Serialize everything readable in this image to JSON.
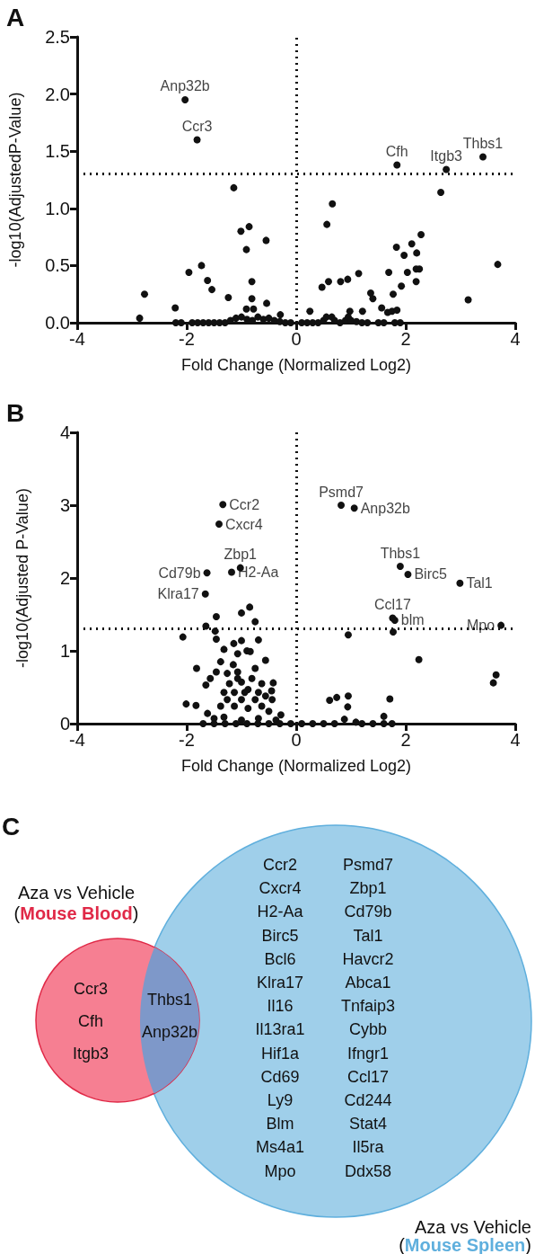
{
  "chart_data": [
    {
      "type": "scatter",
      "title": "A",
      "xlabel": "Fold Change (Normalized Log2)",
      "ylabel": "-log10(AdjustedP-Value)",
      "marker": "circle",
      "xlim": [
        -4,
        4
      ],
      "xticks": [
        -4,
        -2,
        0,
        2,
        4
      ],
      "ylim": [
        0,
        2.5
      ],
      "yticks": [
        {
          "value": 0,
          "label": "0.0"
        },
        0.5,
        {
          "value": 1,
          "label": "1.0"
        },
        1.5,
        {
          "value": 2,
          "label": "2.0"
        },
        2.5
      ],
      "ref_lines": [
        {
          "axis": "x",
          "value": 0,
          "line_style": "dotted",
          "color": "#111111"
        },
        {
          "axis": "y",
          "value": 1.3,
          "line_style": "dotted",
          "color": "#111111"
        }
      ],
      "annotations": [
        {
          "text": "Anp32b",
          "x": -2.03,
          "y": 1.95
        },
        {
          "text": "Ccr3",
          "x": -1.81,
          "y": 1.6
        },
        {
          "text": "Cfh",
          "x": 1.84,
          "y": 1.38
        },
        {
          "text": "Itgb3",
          "x": 2.74,
          "y": 1.34
        },
        {
          "text": "Thbs1",
          "x": 3.41,
          "y": 1.45
        }
      ],
      "series": [
        {
          "color": "#111111",
          "x": [
            -2.03,
            -1.81,
            1.84,
            2.74,
            3.41,
            -1.14,
            0.66,
            0.56,
            -1.01,
            -0.86,
            -0.91,
            -0.55,
            2.64,
            3.68,
            3.14,
            -1.73,
            -1.96,
            -1.62,
            -1.54,
            -2.77,
            -2.86,
            -2.21,
            -1.24,
            -0.81,
            -0.81,
            -0.54,
            -0.91,
            -0.78,
            -0.29,
            2.28,
            1.83,
            2.11,
            1.97,
            2.2,
            2.19,
            2.25,
            2.03,
            2.19,
            1.92,
            1.69,
            1.77,
            1.36,
            1.4,
            1.14,
            0.94,
            0.81,
            0.59,
            0.47,
            1.56,
            1.67,
            1.75,
            1.84,
            1.21,
            0.98,
            0.25,
            1.9,
            -2.2,
            -2.1,
            -1.9,
            -1.8,
            -1.7,
            -1.6,
            -1.5,
            -1.4,
            -1.3,
            -1.2,
            -1.1,
            -1.0,
            -0.9,
            -0.8,
            -0.7,
            -0.6,
            -0.5,
            -0.4,
            -0.3,
            -0.2,
            -0.1,
            0.1,
            0.2,
            0.3,
            0.4,
            0.5,
            0.55,
            0.65,
            0.7,
            0.8,
            0.9,
            0.95,
            1.0,
            1.1,
            1.2,
            1.3,
            1.5,
            1.6,
            1.8
          ],
          "values": [
            1.95,
            1.6,
            1.38,
            1.34,
            1.45,
            1.18,
            1.04,
            0.86,
            0.8,
            0.84,
            0.64,
            0.72,
            1.14,
            0.51,
            0.2,
            0.5,
            0.44,
            0.37,
            0.29,
            0.25,
            0.04,
            0.13,
            0.22,
            0.36,
            0.21,
            0.17,
            0.12,
            0.12,
            0.07,
            0.77,
            0.66,
            0.69,
            0.59,
            0.61,
            0.47,
            0.47,
            0.44,
            0.36,
            0.32,
            0.44,
            0.25,
            0.26,
            0.21,
            0.43,
            0.38,
            0.36,
            0.36,
            0.31,
            0.13,
            0.09,
            0.1,
            0.11,
            0.1,
            0.1,
            0.1,
            0,
            0,
            0,
            0,
            0,
            0,
            0,
            0,
            0,
            0,
            0.02,
            0.04,
            0.05,
            0.03,
            0.02,
            0.05,
            0.03,
            0.04,
            0.02,
            0.01,
            0,
            0,
            0,
            0,
            0,
            0,
            0.02,
            0.05,
            0.05,
            0.02,
            0,
            0.02,
            0.05,
            0.02,
            0.01,
            0,
            0,
            0,
            0,
            0
          ]
        }
      ]
    },
    {
      "type": "scatter",
      "title": "B",
      "xlabel": "Fold Change (Normalized Log2)",
      "ylabel": "-log10(Adjusted P-Value)",
      "marker": "circle",
      "xlim": [
        -4,
        4
      ],
      "xticks": [
        -4,
        -2,
        0,
        2,
        4
      ],
      "ylim": [
        0,
        4
      ],
      "yticks": [
        0,
        1,
        2,
        3,
        4
      ],
      "ref_lines": [
        {
          "axis": "x",
          "value": 0,
          "line_style": "dotted",
          "color": "#111111"
        },
        {
          "axis": "y",
          "value": 1.3,
          "line_style": "dotted",
          "color": "#111111"
        }
      ],
      "annotations": [
        {
          "text": "Ccr2",
          "x": -1.34,
          "y": 3.01
        },
        {
          "text": "Cxcr4",
          "x": -1.41,
          "y": 2.74
        },
        {
          "text": "Psmd7",
          "x": 0.82,
          "y": 3.0
        },
        {
          "text": "Anp32b",
          "x": 1.06,
          "y": 2.96
        },
        {
          "text": "Cd79b",
          "x": -1.63,
          "y": 2.07
        },
        {
          "text": "Zbp1",
          "x": -1.02,
          "y": 2.14
        },
        {
          "text": "H2-Aa",
          "x": -1.18,
          "y": 2.08
        },
        {
          "text": "Klra17",
          "x": -1.66,
          "y": 1.78
        },
        {
          "text": "Thbs1",
          "x": 1.9,
          "y": 2.16
        },
        {
          "text": "Birc5",
          "x": 2.04,
          "y": 2.05
        },
        {
          "text": "Tal1",
          "x": 2.99,
          "y": 1.93
        },
        {
          "text": "Ccl17",
          "x": 1.76,
          "y": 1.45
        },
        {
          "text": "blm",
          "x": 1.8,
          "y": 1.42
        },
        {
          "text": "Mpo",
          "x": 3.74,
          "y": 1.35
        }
      ],
      "series": [
        {
          "color": "#111111",
          "x": [
            -1.34,
            -1.41,
            0.82,
            1.06,
            -1.63,
            -1.02,
            -1.18,
            -1.66,
            1.9,
            2.04,
            2.99,
            1.76,
            1.8,
            3.74,
            0.95,
            1.77,
            2.24,
            3.65,
            3.6,
            0.61,
            0.74,
            0.95,
            0.94,
            1.71,
            1.6,
            0.88,
            1.09,
            0.1,
            0.3,
            0.5,
            0.7,
            1.2,
            1.4,
            1.6,
            1.75,
            -2.07,
            -1.65,
            -1.46,
            -1.48,
            -1.46,
            -1.32,
            -1.14,
            -1.07,
            -1.0,
            -0.9,
            -0.84,
            -0.69,
            -0.56,
            -1.0,
            -0.85,
            -0.75,
            -1.82,
            -2.01,
            -1.83,
            -1.65,
            -1.57,
            -1.46,
            -1.38,
            -1.26,
            -1.15,
            -1.07,
            -1.0,
            -0.88,
            -0.81,
            -0.75,
            -0.63,
            -0.45,
            -0.42,
            -0.28,
            -1.38,
            -1.26,
            -1.13,
            -1.0,
            -0.88,
            -0.75,
            -0.63,
            -0.5,
            -1.62,
            -1.5,
            -1.32,
            -1.0,
            -0.69,
            -0.37,
            -1.32,
            -1.13,
            -0.94,
            -0.69,
            -1.22,
            -1.07,
            -0.56,
            -0.44,
            -1.7,
            -1.5,
            -1.3,
            -1.1,
            -0.9,
            -0.7,
            -0.5,
            -0.3,
            -0.1
          ],
          "values": [
            3.01,
            2.74,
            3.0,
            2.96,
            2.07,
            2.14,
            2.08,
            1.78,
            2.16,
            2.05,
            1.93,
            1.45,
            1.42,
            1.35,
            1.22,
            1.26,
            0.88,
            0.67,
            0.56,
            0.32,
            0.36,
            0.38,
            0.23,
            0.34,
            0.1,
            0.06,
            0.02,
            0,
            0,
            0,
            0,
            0,
            0,
            0,
            0,
            1.19,
            1.34,
            1.47,
            1.27,
            1.16,
            1.02,
            1.1,
            0.96,
            1.14,
            1.0,
            0.99,
            1.15,
            0.87,
            1.52,
            1.6,
            1.4,
            0.76,
            0.27,
            0.25,
            0.53,
            0.62,
            0.71,
            0.85,
            0.69,
            0.81,
            0.71,
            0.57,
            0.47,
            0.62,
            0.76,
            0.55,
            0.45,
            0.56,
            0.12,
            0.24,
            0.33,
            0.24,
            0.33,
            0.21,
            0.33,
            0.24,
            0.17,
            0.14,
            0.07,
            0.09,
            0.05,
            0.07,
            0.05,
            0.43,
            0.43,
            0.43,
            0.43,
            0.55,
            0.62,
            0.38,
            0.33,
            0,
            0,
            0,
            0,
            0,
            0,
            0,
            0,
            0
          ]
        }
      ]
    },
    {
      "type": "other",
      "title": "C",
      "colors": [
        "#f67f92",
        "#9fcfea"
      ],
      "annotations": [
        "Aza vs Vehicle",
        "Aza vs Vehicle",
        "(Mouse Blood)",
        "(Mouse Spleen)",
        "Ccr3",
        "Cfh",
        "Itgb3",
        "Thbs1",
        "Anp32b",
        "Ccr2",
        "Cxcr4",
        "H2-Aa",
        "Birc5",
        "Bcl6",
        "Klra17",
        "Il16",
        "Il13ra1",
        "Hif1a",
        "Cd69",
        "Ly9",
        "Blm",
        "Ms4a1",
        "Mpo",
        "Psmd7",
        "Zbp1",
        "Cd79b",
        "Tal1",
        "Havcr2",
        "Abca1",
        "Tnfaip3",
        "Cybb",
        "Ifngr1",
        "Ccl17",
        "Cd244",
        "Stat4",
        "Il5ra",
        "Ddx58"
      ]
    }
  ]
}
